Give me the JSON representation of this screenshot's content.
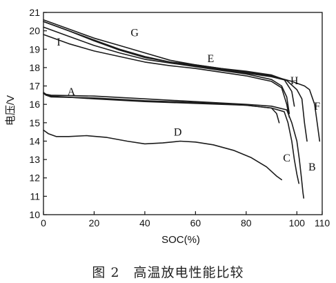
{
  "caption": "图 2　高温放电性能比较",
  "chart_data": {
    "type": "line",
    "title": "",
    "xlabel": "SOC(%)",
    "ylabel": "电压/V",
    "xlim": [
      0,
      110
    ],
    "ylim": [
      10,
      21
    ],
    "xticks": [
      0,
      20,
      40,
      60,
      80,
      100,
      110
    ],
    "yticks": [
      10,
      11,
      12,
      13,
      14,
      15,
      16,
      17,
      18,
      19,
      20,
      21
    ],
    "grid": false,
    "legend": "none",
    "series": [
      {
        "name": "A",
        "label_at": [
          11,
          16.5
        ],
        "points": [
          [
            0,
            16.6
          ],
          [
            1,
            16.5
          ],
          [
            3,
            16.45
          ],
          [
            20,
            16.3
          ],
          [
            40,
            16.15
          ],
          [
            60,
            16.05
          ],
          [
            80,
            15.95
          ],
          [
            90,
            15.8
          ],
          [
            92,
            15.5
          ],
          [
            93,
            15.0
          ]
        ]
      },
      {
        "name": "B",
        "label_at": [
          106,
          12.4
        ],
        "points": [
          [
            0,
            16.65
          ],
          [
            1,
            16.55
          ],
          [
            3,
            16.5
          ],
          [
            20,
            16.45
          ],
          [
            40,
            16.3
          ],
          [
            60,
            16.15
          ],
          [
            80,
            16.0
          ],
          [
            90,
            15.9
          ],
          [
            96,
            15.7
          ],
          [
            98,
            15.0
          ],
          [
            100,
            14.0
          ],
          [
            101,
            13.0
          ],
          [
            101.8,
            12.0
          ],
          [
            102.4,
            11.2
          ],
          [
            102.7,
            10.9
          ]
        ]
      },
      {
        "name": "C",
        "label_at": [
          96,
          12.9
        ],
        "points": [
          [
            0,
            16.6
          ],
          [
            1,
            16.5
          ],
          [
            3,
            16.4
          ],
          [
            20,
            16.35
          ],
          [
            40,
            16.2
          ],
          [
            60,
            16.1
          ],
          [
            80,
            15.95
          ],
          [
            90,
            15.8
          ],
          [
            95,
            15.6
          ],
          [
            96.5,
            15.0
          ],
          [
            98,
            14.0
          ],
          [
            99,
            13.0
          ],
          [
            100,
            12.2
          ],
          [
            100.8,
            11.7
          ]
        ]
      },
      {
        "name": "D",
        "label_at": [
          53,
          14.3
        ],
        "points": [
          [
            0,
            14.6
          ],
          [
            2,
            14.4
          ],
          [
            5,
            14.25
          ],
          [
            10,
            14.25
          ],
          [
            17,
            14.3
          ],
          [
            25,
            14.2
          ],
          [
            33,
            14.0
          ],
          [
            40,
            13.85
          ],
          [
            47,
            13.9
          ],
          [
            54,
            14.0
          ],
          [
            60,
            13.95
          ],
          [
            67,
            13.8
          ],
          [
            75,
            13.5
          ],
          [
            82,
            13.1
          ],
          [
            88,
            12.6
          ],
          [
            92,
            12.1
          ],
          [
            94,
            11.9
          ]
        ]
      },
      {
        "name": "E",
        "label_at": [
          66,
          18.3
        ],
        "points": [
          [
            0,
            20.2
          ],
          [
            10,
            19.7
          ],
          [
            20,
            19.2
          ],
          [
            30,
            18.8
          ],
          [
            40,
            18.45
          ],
          [
            50,
            18.25
          ],
          [
            60,
            18.05
          ],
          [
            70,
            17.85
          ],
          [
            80,
            17.65
          ],
          [
            90,
            17.35
          ],
          [
            94,
            17.0
          ],
          [
            96,
            16.4
          ],
          [
            97,
            15.5
          ]
        ]
      },
      {
        "name": "F",
        "label_at": [
          108,
          15.7
        ],
        "points": [
          [
            0,
            20.5
          ],
          [
            10,
            20.0
          ],
          [
            20,
            19.45
          ],
          [
            30,
            18.95
          ],
          [
            40,
            18.55
          ],
          [
            50,
            18.3
          ],
          [
            60,
            18.1
          ],
          [
            70,
            17.9
          ],
          [
            80,
            17.7
          ],
          [
            90,
            17.5
          ],
          [
            96,
            17.3
          ],
          [
            100,
            16.8
          ],
          [
            102,
            16.3
          ],
          [
            103,
            15.0
          ],
          [
            104,
            14.0
          ]
        ]
      },
      {
        "name": "G",
        "label_at": [
          36,
          19.7
        ],
        "points": [
          [
            0,
            20.6
          ],
          [
            10,
            20.1
          ],
          [
            20,
            19.6
          ],
          [
            30,
            19.2
          ],
          [
            40,
            18.8
          ],
          [
            50,
            18.4
          ],
          [
            60,
            18.15
          ],
          [
            70,
            17.95
          ],
          [
            80,
            17.8
          ],
          [
            90,
            17.6
          ],
          [
            95,
            17.35
          ],
          [
            98,
            16.7
          ],
          [
            99,
            15.9
          ]
        ]
      },
      {
        "name": "H",
        "label_at": [
          99,
          17.1
        ],
        "points": [
          [
            0,
            20.5
          ],
          [
            10,
            20.0
          ],
          [
            20,
            19.5
          ],
          [
            30,
            19.0
          ],
          [
            40,
            18.6
          ],
          [
            50,
            18.3
          ],
          [
            60,
            18.15
          ],
          [
            70,
            17.95
          ],
          [
            80,
            17.75
          ],
          [
            90,
            17.55
          ],
          [
            98,
            17.25
          ],
          [
            103,
            17.0
          ],
          [
            105,
            16.8
          ],
          [
            107,
            16.0
          ],
          [
            108,
            15.0
          ],
          [
            109,
            14.0
          ]
        ]
      },
      {
        "name": "I",
        "label_at": [
          6,
          19.2
        ],
        "points": [
          [
            0,
            19.8
          ],
          [
            10,
            19.3
          ],
          [
            20,
            18.9
          ],
          [
            30,
            18.6
          ],
          [
            40,
            18.3
          ],
          [
            50,
            18.1
          ],
          [
            60,
            17.95
          ],
          [
            70,
            17.75
          ],
          [
            80,
            17.55
          ],
          [
            90,
            17.25
          ],
          [
            94,
            16.9
          ],
          [
            96,
            16.0
          ],
          [
            97,
            15.3
          ]
        ]
      }
    ]
  }
}
